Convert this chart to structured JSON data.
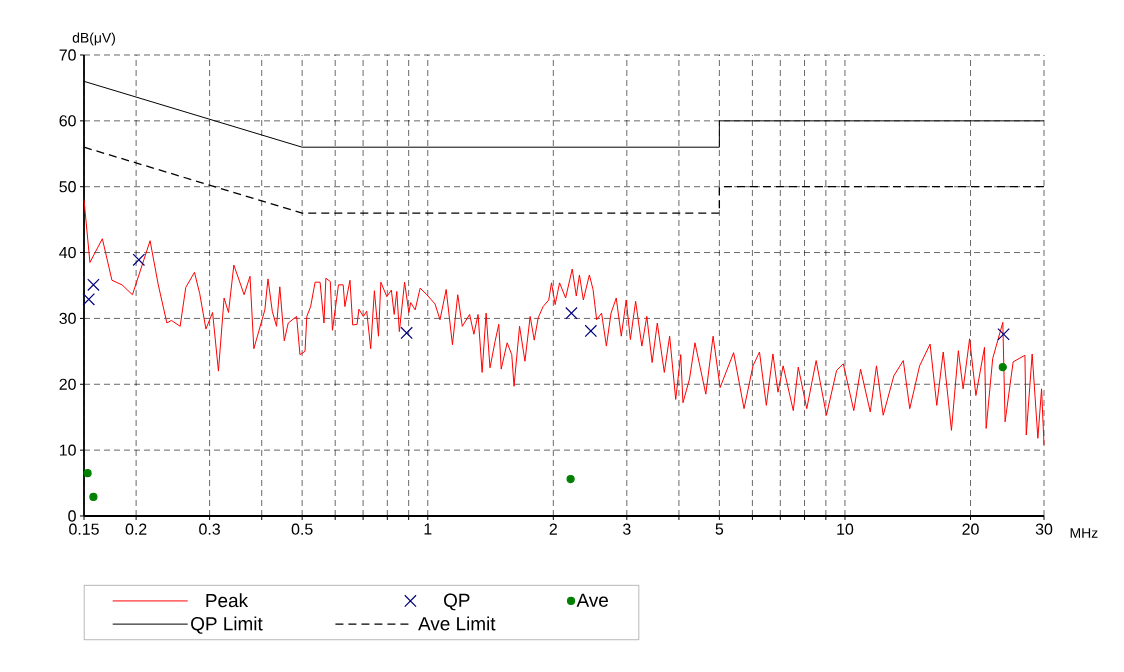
{
  "chart_data": {
    "type": "line",
    "xlabel": "MHz",
    "ylabel": "dB(μV)",
    "log": "x",
    "grid": true,
    "legend": "bottom",
    "xlim": [
      0.15,
      30
    ],
    "ylim": [
      0,
      70
    ],
    "xticks": [
      0.15,
      0.2,
      0.3,
      {
        "value": 0.4,
        "label": null
      },
      0.5,
      {
        "value": 0.6,
        "label": null
      },
      {
        "value": 0.7,
        "label": null
      },
      {
        "value": 0.8,
        "label": null
      },
      {
        "value": 0.9,
        "label": null
      },
      1,
      2,
      3,
      {
        "value": 4,
        "label": null
      },
      5,
      {
        "value": 6,
        "label": null
      },
      {
        "value": 7,
        "label": null
      },
      {
        "value": 8,
        "label": null
      },
      {
        "value": 9,
        "label": null
      },
      10,
      20,
      30
    ],
    "yticks": [
      0,
      10,
      20,
      30,
      40,
      50,
      60,
      70
    ],
    "series": [
      {
        "name": "Peak",
        "type": "line",
        "color": "#ff0000",
        "marker": "none",
        "line_style": "solid",
        "x": [
          0.15,
          0.155,
          0.166,
          0.175,
          0.185,
          0.196,
          0.216,
          0.226,
          0.237,
          0.243,
          0.255,
          0.263,
          0.276,
          0.284,
          0.294,
          0.305,
          0.315,
          0.325,
          0.333,
          0.343,
          0.363,
          0.375,
          0.383,
          0.407,
          0.414,
          0.424,
          0.434,
          0.442,
          0.453,
          0.463,
          0.485,
          0.494,
          0.508,
          0.513,
          0.524,
          0.537,
          0.552,
          0.564,
          0.57,
          0.584,
          0.591,
          0.611,
          0.627,
          0.633,
          0.651,
          0.661,
          0.677,
          0.684,
          0.701,
          0.714,
          0.73,
          0.745,
          0.762,
          0.772,
          0.798,
          0.818,
          0.831,
          0.843,
          0.855,
          0.88,
          0.901,
          0.91,
          0.933,
          0.959,
          0.995,
          1.041,
          1.07,
          1.107,
          1.146,
          1.18,
          1.21,
          1.26,
          1.29,
          1.32,
          1.35,
          1.38,
          1.41,
          1.45,
          1.48,
          1.5,
          1.55,
          1.59,
          1.61,
          1.66,
          1.71,
          1.76,
          1.8,
          1.84,
          1.89,
          1.95,
          1.98,
          2.02,
          2.07,
          2.14,
          2.22,
          2.27,
          2.31,
          2.36,
          2.44,
          2.49,
          2.54,
          2.61,
          2.68,
          2.75,
          2.83,
          2.91,
          2.99,
          3.06,
          3.15,
          3.26,
          3.35,
          3.45,
          3.55,
          3.69,
          3.8,
          3.93,
          4.04,
          4.09,
          4.24,
          4.37,
          4.64,
          4.83,
          5.02,
          5.41,
          5.73,
          6.02,
          6.24,
          6.48,
          6.72,
          6.91,
          7.11,
          7.52,
          7.73,
          8.1,
          8.53,
          9.03,
          9.55,
          9.91,
          10.5,
          10.9,
          11.5,
          11.9,
          12.35,
          13.1,
          13.8,
          14.3,
          15.1,
          16.0,
          16.6,
          17.2,
          18.0,
          18.7,
          19.2,
          19.9,
          20.6,
          21.6,
          21.8,
          22.6,
          23.9,
          24.2,
          25.3,
          27.0,
          27.2,
          28.1,
          29.0,
          29.6,
          30.0
        ],
        "values": [
          48,
          38.5,
          42.1,
          35.8,
          35.1,
          33.6,
          41.8,
          35.1,
          29.3,
          29.7,
          28.8,
          34.7,
          37.0,
          33.8,
          28.4,
          30.9,
          22.0,
          33.1,
          30.9,
          38.1,
          33.6,
          36.4,
          25.4,
          31.3,
          36.0,
          31.1,
          28.8,
          34.8,
          26.6,
          29.3,
          30.3,
          24.5,
          25.0,
          30.3,
          31.8,
          35.5,
          35.5,
          29.3,
          36.1,
          35.6,
          28.2,
          35.1,
          35.1,
          31.8,
          35.8,
          29.0,
          29.1,
          31.4,
          30.3,
          31.1,
          25.4,
          34.2,
          27.3,
          35.5,
          33.3,
          34.3,
          30.6,
          34.1,
          28.0,
          35.5,
          30.9,
          32.4,
          31.3,
          34.6,
          33.6,
          32.2,
          29.8,
          34.4,
          26.0,
          33.6,
          28.8,
          30.6,
          27.6,
          30.6,
          21.8,
          30.8,
          22.5,
          26.5,
          29.1,
          22.3,
          26.3,
          24.5,
          19.7,
          28.8,
          23.5,
          30.3,
          26.7,
          30.1,
          31.8,
          32.8,
          35.4,
          32.1,
          35.4,
          33.1,
          37.5,
          33.4,
          36.6,
          32.8,
          36.6,
          34.4,
          29.8,
          30.8,
          25.8,
          30.8,
          33.1,
          27.3,
          32.8,
          26.8,
          32.6,
          25.8,
          30.3,
          23.3,
          29.3,
          21.8,
          27.3,
          17.7,
          24.5,
          17.2,
          20.8,
          26.3,
          18.5,
          27.3,
          19.5,
          24.8,
          16.3,
          22.8,
          24.9,
          16.8,
          24.6,
          18.8,
          22.8,
          16.0,
          22.6,
          16.3,
          23.6,
          15.3,
          22.1,
          23.1,
          16.0,
          22.3,
          15.8,
          22.8,
          15.3,
          21.3,
          23.6,
          16.3,
          22.8,
          26.1,
          16.8,
          24.9,
          13.0,
          25.1,
          19.3,
          26.9,
          18.3,
          25.6,
          13.3,
          23.9,
          29.4,
          14.3,
          23.4,
          24.4,
          12.3,
          24.6,
          11.8,
          19.3,
          10.8
        ]
      },
      {
        "name": "QP",
        "type": "scatter",
        "color": "#000080",
        "marker": "cross",
        "x": [
          0.154,
          0.158,
          0.203,
          0.89,
          2.21,
          2.46,
          24.0
        ],
        "values": [
          32.9,
          35.1,
          38.9,
          27.8,
          30.8,
          28.1,
          27.6
        ]
      },
      {
        "name": "Ave",
        "type": "scatter",
        "color": "#008000",
        "marker": "circle",
        "x": [
          0.153,
          0.158,
          2.2,
          23.9
        ],
        "values": [
          6.5,
          2.9,
          5.6,
          22.6
        ]
      },
      {
        "name": "QP Limit",
        "type": "line",
        "color": "#000000",
        "marker": "none",
        "line_style": "solid",
        "x": [
          0.15,
          0.5,
          5,
          5,
          30
        ],
        "values": [
          66,
          56,
          56,
          60,
          60
        ]
      },
      {
        "name": "Ave Limit",
        "type": "line",
        "color": "#000000",
        "marker": "none",
        "line_style": "dashed",
        "x": [
          0.15,
          0.5,
          5,
          5,
          30
        ],
        "values": [
          56,
          46,
          46,
          50,
          50
        ]
      }
    ]
  }
}
